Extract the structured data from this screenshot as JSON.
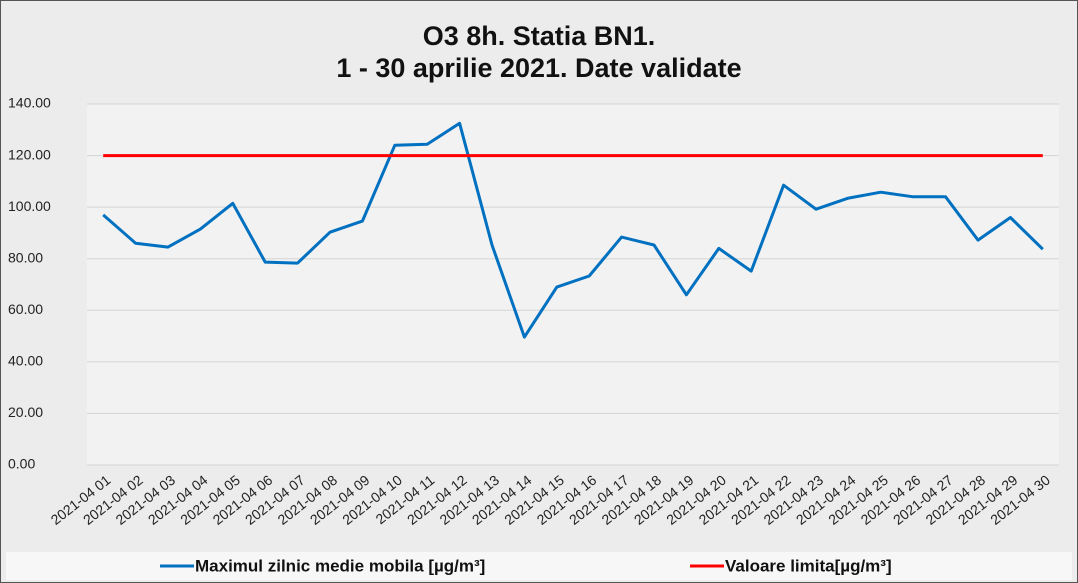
{
  "chart_data": {
    "type": "line",
    "title": [
      "O3 8h. Statia BN1.",
      "1 - 30 aprilie 2021. Date validate"
    ],
    "categories": [
      "2021-04 01",
      "2021-04 02",
      "2021-04 03",
      "2021-04 04",
      "2021-04 05",
      "2021-04 06",
      "2021-04 07",
      "2021-04 08",
      "2021-04 09",
      "2021-04 10",
      "2021-04 11",
      "2021-04 12",
      "2021-04 13",
      "2021-04 14",
      "2021-04 15",
      "2021-04 16",
      "2021-04 17",
      "2021-04 18",
      "2021-04 19",
      "2021-04 20",
      "2021-04 21",
      "2021-04 22",
      "2021-04 23",
      "2021-04 24",
      "2021-04 25",
      "2021-04 26",
      "2021-04 27",
      "2021-04 28",
      "2021-04 29",
      "2021-04 30"
    ],
    "series": [
      {
        "name": "Maximul zilnic medie mobila [µg/m³]",
        "color": "#0070c0",
        "values": [
          97,
          86,
          84.5,
          91.5,
          101.5,
          78.7,
          78.3,
          90.3,
          94.6,
          124,
          124.4,
          132.5,
          85.3,
          49.6,
          69,
          73.3,
          88.4,
          85.3,
          66,
          84,
          75.2,
          108.5,
          99.2,
          103.5,
          105.8,
          104,
          104,
          87.2,
          96,
          83.7
        ]
      },
      {
        "name": "Valoare limita[µg/m³]",
        "color": "#ff0000",
        "values": [
          120,
          120,
          120,
          120,
          120,
          120,
          120,
          120,
          120,
          120,
          120,
          120,
          120,
          120,
          120,
          120,
          120,
          120,
          120,
          120,
          120,
          120,
          120,
          120,
          120,
          120,
          120,
          120,
          120,
          120
        ]
      }
    ],
    "ylim": [
      0,
      140
    ],
    "yticks": [
      {
        "value": 0,
        "label": "0.00"
      },
      {
        "value": 20,
        "label": "20.00"
      },
      {
        "value": 40,
        "label": "40.00"
      },
      {
        "value": 60,
        "label": "60.00"
      },
      {
        "value": 80,
        "label": "80.00"
      },
      {
        "value": 100,
        "label": "100.00"
      },
      {
        "value": 120,
        "label": "120.00"
      },
      {
        "value": 140,
        "label": "140.00"
      }
    ],
    "grid": true,
    "legend": "bottom"
  }
}
